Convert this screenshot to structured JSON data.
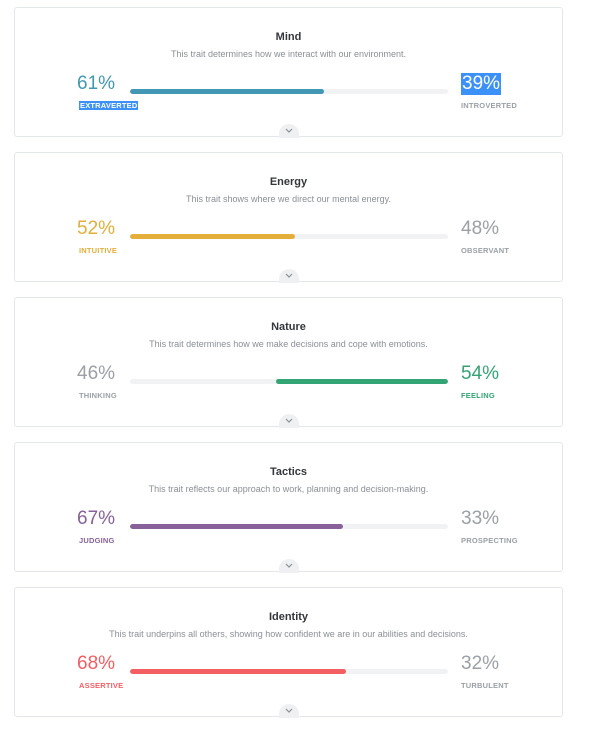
{
  "traits": [
    {
      "title": "Mind",
      "description": "This trait determines how we interact with our environment.",
      "left_percent": "61%",
      "left_label": "EXTRAVERTED",
      "right_percent": "39%",
      "right_label": "INTROVERTED",
      "dominant": "left",
      "fill_fraction": 0.61,
      "color": "#4298b4"
    },
    {
      "title": "Energy",
      "description": "This trait shows where we direct our mental energy.",
      "left_percent": "52%",
      "left_label": "INTUITIVE",
      "right_percent": "48%",
      "right_label": "OBSERVANT",
      "dominant": "left",
      "fill_fraction": 0.52,
      "color": "#e4ae3a"
    },
    {
      "title": "Nature",
      "description": "This trait determines how we make decisions and cope with emotions.",
      "left_percent": "46%",
      "left_label": "THINKING",
      "right_percent": "54%",
      "right_label": "FEELING",
      "dominant": "right",
      "fill_fraction": 0.54,
      "color": "#33a474"
    },
    {
      "title": "Tactics",
      "description": "This trait reflects our approach to work, planning and decision-making.",
      "left_percent": "67%",
      "left_label": "JUDGING",
      "right_percent": "33%",
      "right_label": "PROSPECTING",
      "dominant": "left",
      "fill_fraction": 0.67,
      "color": "#88619a"
    },
    {
      "title": "Identity",
      "description": "This trait underpins all others, showing how confident we are in our abilities and decisions.",
      "left_percent": "68%",
      "left_label": "ASSERTIVE",
      "right_percent": "32%",
      "right_label": "TURBULENT",
      "dominant": "left",
      "fill_fraction": 0.68,
      "color": "#f25e62"
    }
  ],
  "neutral_color": "#9aa0a6",
  "selection_color": "#3b91f7"
}
